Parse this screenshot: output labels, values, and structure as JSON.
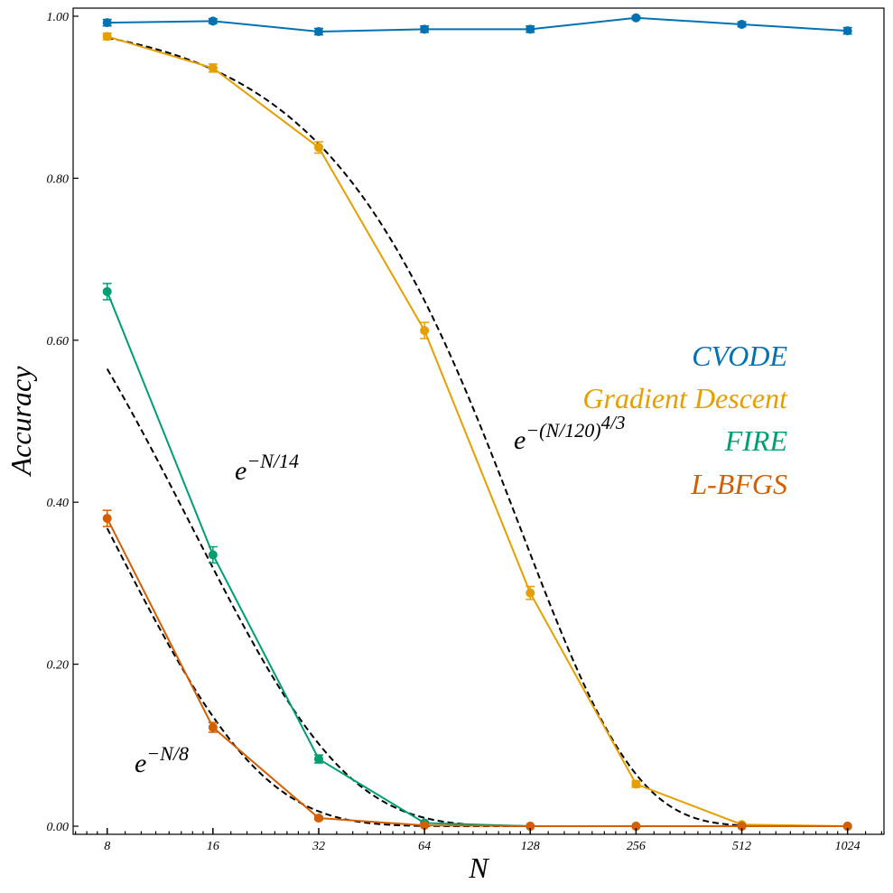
{
  "chart_data": {
    "type": "line",
    "xlabel": "N",
    "ylabel": "Accuracy",
    "x_scale": "log2",
    "x": [
      8,
      16,
      32,
      64,
      128,
      256,
      512,
      1024
    ],
    "x_tick_labels": [
      "8",
      "16",
      "32",
      "64",
      "128",
      "256",
      "512",
      "1024"
    ],
    "xlim": [
      6.4,
      1300
    ],
    "ylim": [
      -0.01,
      1.01
    ],
    "y_ticks": [
      0.0,
      0.2,
      0.4,
      0.6,
      0.8,
      1.0
    ],
    "y_tick_labels": [
      "0.00",
      "0.20",
      "0.40",
      "0.60",
      "0.80",
      "1.00"
    ],
    "grid": false,
    "legend_position": "center-right",
    "series": [
      {
        "name": "CVODE",
        "color": "#0072b2",
        "values": [
          0.992,
          0.994,
          0.981,
          0.984,
          0.984,
          0.998,
          0.99,
          0.982
        ],
        "errors": [
          0.004,
          0.003,
          0.004,
          0.004,
          0.004,
          0.002,
          0.003,
          0.004
        ]
      },
      {
        "name": "Gradient Descent",
        "color": "#e69f00",
        "values": [
          0.975,
          0.936,
          0.838,
          0.612,
          0.288,
          0.052,
          0.002,
          0.0
        ],
        "errors": [
          0.004,
          0.005,
          0.007,
          0.01,
          0.008,
          0.004,
          0.001,
          0.0
        ]
      },
      {
        "name": "FIRE",
        "color": "#009e73",
        "values": [
          0.66,
          0.335,
          0.083,
          0.004,
          0.0,
          0.0,
          0.0,
          0.0
        ],
        "errors": [
          0.01,
          0.01,
          0.005,
          0.002,
          0.0,
          0.0,
          0.0,
          0.0
        ]
      },
      {
        "name": "L-BFGS",
        "color": "#d55e00",
        "values": [
          0.38,
          0.122,
          0.01,
          0.001,
          0.0,
          0.0,
          0.0,
          0.0
        ],
        "errors": [
          0.01,
          0.006,
          0.002,
          0.001,
          0.0,
          0.0,
          0.0,
          0.0
        ]
      }
    ],
    "fits": [
      {
        "formula": "exp(-(N/120)^(4/3))",
        "x_range": [
          8,
          1024
        ],
        "style": "dashed",
        "color": "#000000"
      },
      {
        "formula": "exp(-N/14)",
        "x_range": [
          8,
          128
        ],
        "style": "dashed",
        "color": "#000000"
      },
      {
        "formula": "exp(-N/8)",
        "x_range": [
          8,
          128
        ],
        "style": "dashed",
        "color": "#000000"
      }
    ],
    "annotations": [
      {
        "base": "e",
        "exponent": "−(N/120)",
        "power": "4/3"
      },
      {
        "base": "e",
        "exponent": "−N/14"
      },
      {
        "base": "e",
        "exponent": "−N/8"
      }
    ]
  }
}
